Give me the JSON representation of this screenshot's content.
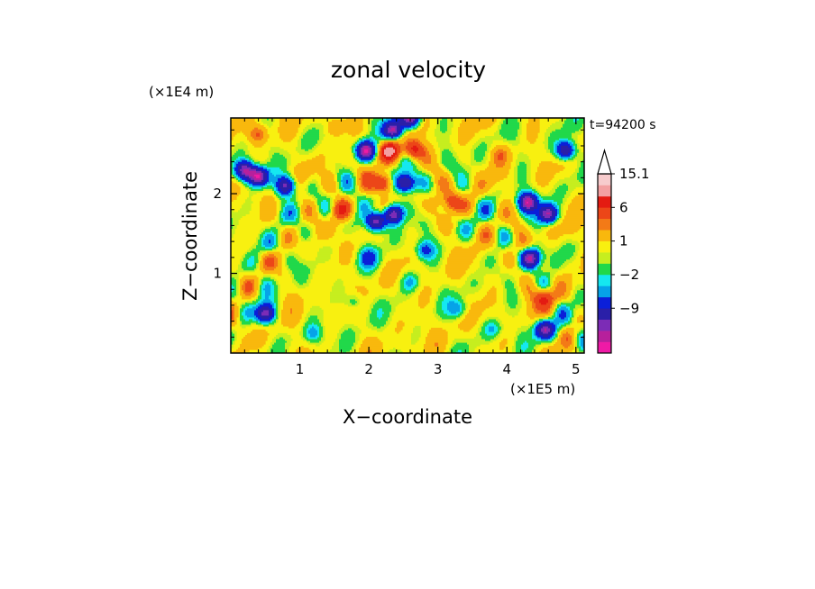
{
  "chart_data": {
    "type": "heatmap",
    "title": "zonal velocity",
    "xlabel": "X−coordinate",
    "ylabel": "Z−coordinate",
    "x_scale_label": "(×1E5 m)",
    "y_scale_label": "(×1E4 m)",
    "time_label": "t=94200 s",
    "xlim": [
      0,
      5.12
    ],
    "ylim": [
      0,
      2.95
    ],
    "x_ticks": [
      {
        "value": 1,
        "label": "1"
      },
      {
        "value": 2,
        "label": "2"
      },
      {
        "value": 3,
        "label": "3"
      },
      {
        "value": 4,
        "label": "4"
      },
      {
        "value": 5,
        "label": "5"
      }
    ],
    "y_ticks": [
      {
        "value": 1,
        "label": "1"
      },
      {
        "value": 2,
        "label": "2"
      }
    ],
    "colorbar": {
      "colors": [
        "#ef1aa6",
        "#b7209c",
        "#7c2cb6",
        "#2a1fa8",
        "#0b1fd9",
        "#06a3e8",
        "#15e8f0",
        "#21d84a",
        "#c6ee1f",
        "#f8f010",
        "#f9b80d",
        "#f37a17",
        "#ec4618",
        "#e41b12",
        "#f3a0a1",
        "#f7cccd"
      ],
      "labels": [
        {
          "text": "−9",
          "index": 3
        },
        {
          "text": "−2",
          "index": 6
        },
        {
          "text": "1",
          "index": 9
        },
        {
          "text": "6",
          "index": 12
        },
        {
          "text": "15.1",
          "index": 15
        }
      ],
      "arrow_color": "#ffffff"
    },
    "field_features": [
      {
        "x": 2.22,
        "z": 2.14,
        "value": 14
      },
      {
        "x": 2.53,
        "z": 2.14,
        "value": -13
      },
      {
        "x": 1.95,
        "z": 2.55,
        "value": -13
      },
      {
        "x": 2.3,
        "z": 2.55,
        "value": 12
      },
      {
        "x": 2.65,
        "z": 2.55,
        "value": 11
      },
      {
        "x": 2.35,
        "z": 2.8,
        "value": -11
      },
      {
        "x": 2.6,
        "z": 2.95,
        "value": -12
      },
      {
        "x": 2.35,
        "z": 1.75,
        "value": -12
      },
      {
        "x": 2.1,
        "z": 1.65,
        "value": -12
      },
      {
        "x": 0.4,
        "z": 2.22,
        "value": -13
      },
      {
        "x": 0.2,
        "z": 2.3,
        "value": -11
      },
      {
        "x": 0.8,
        "z": 2.1,
        "value": -10
      },
      {
        "x": 4.3,
        "z": 1.9,
        "value": -12
      },
      {
        "x": 4.6,
        "z": 1.75,
        "value": -11
      },
      {
        "x": 4.35,
        "z": 1.2,
        "value": -11
      },
      {
        "x": 4.85,
        "z": 2.55,
        "value": -10
      },
      {
        "x": 4.55,
        "z": 0.7,
        "value": 9
      },
      {
        "x": 4.55,
        "z": 0.3,
        "value": -10
      },
      {
        "x": 0.5,
        "z": 0.5,
        "value": -10
      },
      {
        "x": 1.6,
        "z": 1.8,
        "value": 8
      },
      {
        "x": 3.2,
        "z": 1.9,
        "value": 8
      },
      {
        "x": 0.4,
        "z": 2.75,
        "value": 7
      },
      {
        "x": 1.5,
        "z": 2.85,
        "value": 6
      },
      {
        "x": 3.9,
        "z": 2.5,
        "value": 5
      },
      {
        "x": 2.8,
        "z": 1.3,
        "value": -4
      },
      {
        "x": 2.0,
        "z": 1.2,
        "value": -3
      },
      {
        "x": 1.8,
        "z": 0.65,
        "value": -2.5
      },
      {
        "x": 3.3,
        "z": 0.55,
        "value": -2.5
      },
      {
        "x": 2.6,
        "z": 0.9,
        "value": -2.2
      },
      {
        "x": 0.6,
        "z": 1.35,
        "value": -2
      },
      {
        "x": 1.2,
        "z": 0.25,
        "value": -2
      },
      {
        "x": 3.8,
        "z": 0.3,
        "value": -2
      },
      {
        "x": 0.15,
        "z": 0.9,
        "value": 2.5
      },
      {
        "x": 1.0,
        "z": 1.0,
        "value": 2
      },
      {
        "x": 3.6,
        "z": 1.0,
        "value": 2.5
      },
      {
        "x": 4.95,
        "z": 1.5,
        "value": 3
      },
      {
        "x": 0.8,
        "z": 0.05,
        "value": 3
      },
      {
        "x": 3.0,
        "z": 0.1,
        "value": 2
      }
    ]
  }
}
